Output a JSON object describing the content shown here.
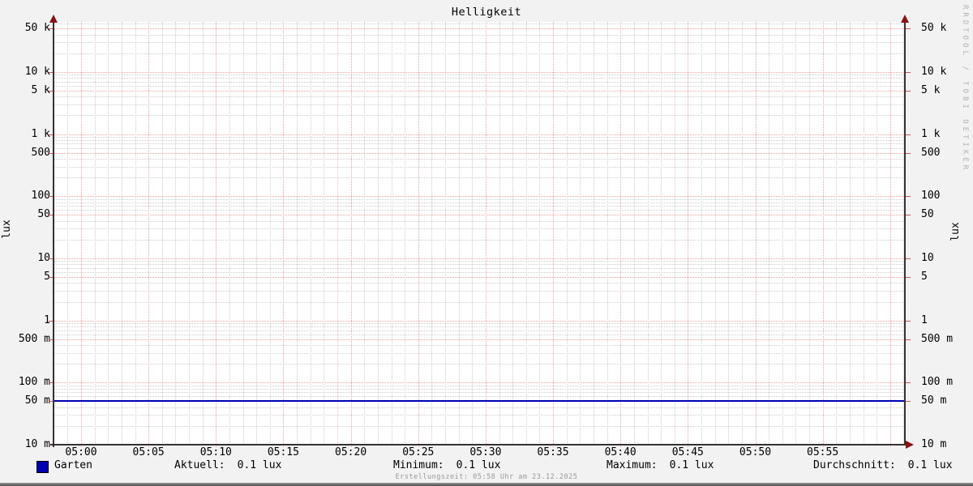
{
  "title": "Helligkeit",
  "watermark": "RRDTOOL / TOBI OETIKER",
  "axis": {
    "unit_left": "lux",
    "unit_right": "lux"
  },
  "legend": {
    "series": "Garten",
    "stats": [
      {
        "label": "Aktuell:",
        "value": "0.1 lux"
      },
      {
        "label": "Minimum:",
        "value": "0.1 lux"
      },
      {
        "label": "Maximum:",
        "value": "0.1 lux"
      },
      {
        "label": "Durchschnitt:",
        "value": "0.1 lux"
      }
    ]
  },
  "footer": {
    "creation_text": "Erstellungszeit: 05:58 Uhr am 23.12.2025"
  },
  "colors": {
    "background": "#f2f2f2",
    "canvas": "#ffffff",
    "grid_major": "#f0a0a0",
    "grid_minor": "#cccccc",
    "axis": "#333333",
    "arrow": "#8b1212",
    "side_tick": "#cc5555",
    "series": "#0000b4",
    "watermark_text": "#b3b3b3",
    "footer_text": "#999999"
  },
  "chart_data": {
    "type": "line",
    "title": "Helligkeit",
    "ylabel": "lux",
    "ylabel_right": "lux",
    "yscale": "log",
    "ylim": [
      0.01,
      63000
    ],
    "xlim": [
      "04:58",
      "06:01"
    ],
    "grid": true,
    "legend_position": "bottom",
    "x_ticks": [
      "05:00",
      "05:05",
      "05:10",
      "05:15",
      "05:20",
      "05:25",
      "05:30",
      "05:35",
      "05:40",
      "05:45",
      "05:50",
      "05:55"
    ],
    "x_major_interval_minutes": 5,
    "x_minor_interval_minutes": 1,
    "y_ticks": [
      {
        "label": "50 k",
        "value": 50000
      },
      {
        "label": "10 k",
        "value": 10000
      },
      {
        "label": "5 k",
        "value": 5000
      },
      {
        "label": "1 k",
        "value": 1000
      },
      {
        "label": "500",
        "value": 500
      },
      {
        "label": "100",
        "value": 100
      },
      {
        "label": "50",
        "value": 50
      },
      {
        "label": "10",
        "value": 10
      },
      {
        "label": "5",
        "value": 5
      },
      {
        "label": "1",
        "value": 1
      },
      {
        "label": "500 m",
        "value": 0.5
      },
      {
        "label": "100 m",
        "value": 0.1
      },
      {
        "label": "50 m",
        "value": 0.05
      },
      {
        "label": "10 m",
        "value": 0.01
      }
    ],
    "series": [
      {
        "name": "Garten",
        "color": "#0000b4",
        "constant_value": 0.05
      }
    ],
    "stats": {
      "aktuell": "0.1 lux",
      "minimum": "0.1 lux",
      "maximum": "0.1 lux",
      "durchschnitt": "0.1 lux"
    }
  }
}
